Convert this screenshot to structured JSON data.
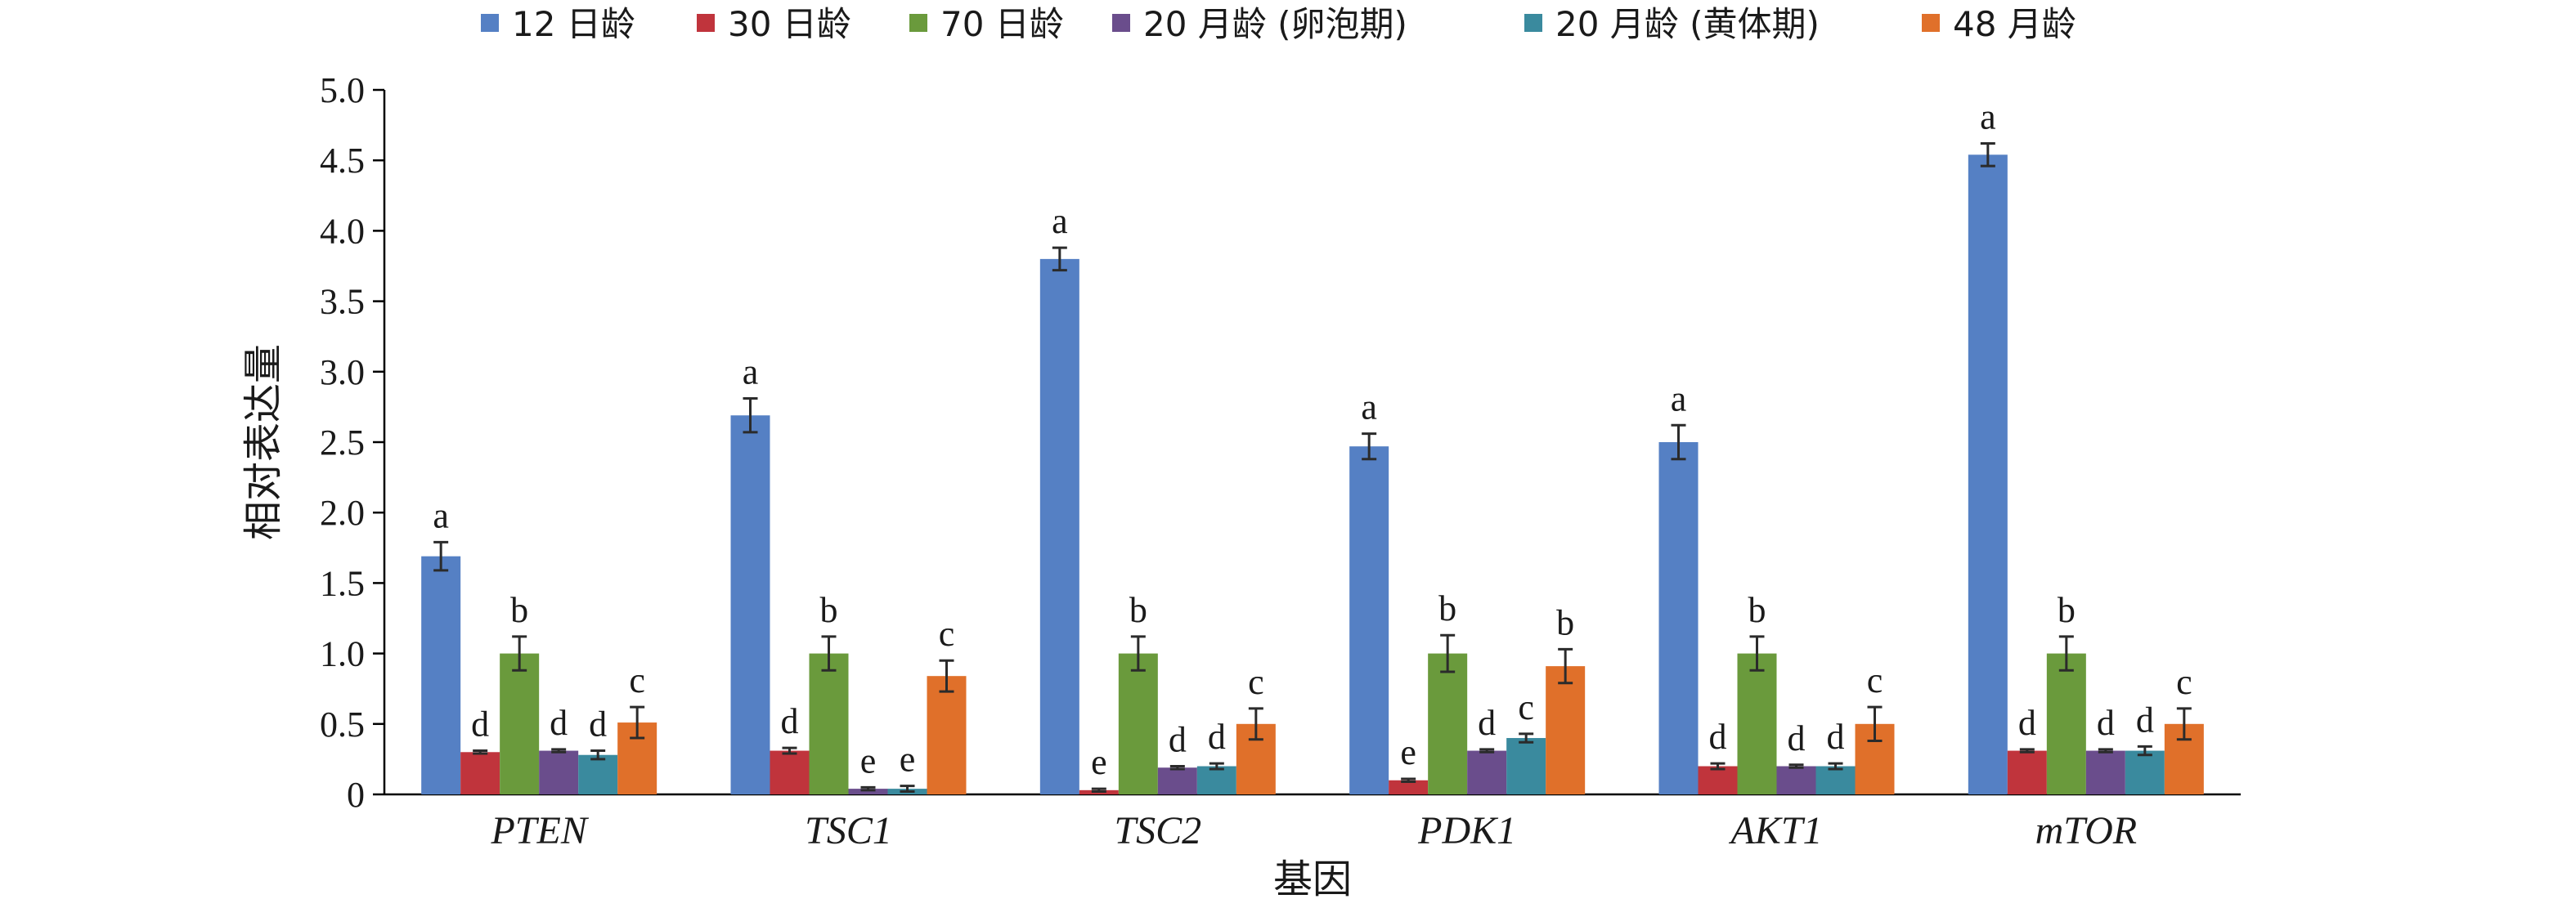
{
  "chart_data": {
    "type": "bar",
    "xlabel": "基因",
    "ylabel": "相对表达量",
    "ylim": [
      0,
      5.0
    ],
    "yticks": [
      "0",
      "0.5",
      "1.0",
      "1.5",
      "2.0",
      "2.5",
      "3.0",
      "3.5",
      "4.0",
      "4.5",
      "5.0"
    ],
    "legend_position": "top",
    "grid": false,
    "categories": [
      "PTEN",
      "TSC1",
      "TSC2",
      "PDK1",
      "AKT1",
      "mTOR"
    ],
    "series": [
      {
        "name": "12 日龄",
        "color": "#5580C4",
        "values": [
          1.69,
          2.69,
          3.8,
          2.47,
          2.5,
          4.54
        ],
        "errors": [
          0.1,
          0.12,
          0.08,
          0.09,
          0.12,
          0.08
        ],
        "letters": [
          "a",
          "a",
          "a",
          "a",
          "a",
          "a"
        ]
      },
      {
        "name": "30 日龄",
        "color": "#C0343C",
        "values": [
          0.3,
          0.31,
          0.03,
          0.1,
          0.2,
          0.31
        ],
        "errors": [
          0.01,
          0.02,
          0.01,
          0.01,
          0.02,
          0.01
        ],
        "letters": [
          "d",
          "d",
          "e",
          "e",
          "d",
          "d"
        ]
      },
      {
        "name": "70 日龄",
        "color": "#6A9A3C",
        "values": [
          1.0,
          1.0,
          1.0,
          1.0,
          1.0,
          1.0
        ],
        "errors": [
          0.12,
          0.12,
          0.12,
          0.13,
          0.12,
          0.12
        ],
        "letters": [
          "b",
          "b",
          "b",
          "b",
          "b",
          "b"
        ]
      },
      {
        "name": "20 月龄 (卵泡期)",
        "color": "#6A4D8C",
        "values": [
          0.31,
          0.04,
          0.19,
          0.31,
          0.2,
          0.31
        ],
        "errors": [
          0.01,
          0.01,
          0.01,
          0.01,
          0.01,
          0.01
        ],
        "letters": [
          "d",
          "e",
          "d",
          "d",
          "d",
          "d"
        ]
      },
      {
        "name": "20 月龄 (黄体期)",
        "color": "#3A8A9E",
        "values": [
          0.28,
          0.04,
          0.2,
          0.4,
          0.2,
          0.31
        ],
        "errors": [
          0.03,
          0.02,
          0.02,
          0.03,
          0.02,
          0.03
        ],
        "letters": [
          "d",
          "e",
          "d",
          "c",
          "d",
          "d"
        ]
      },
      {
        "name": "48 月龄",
        "color": "#E0702A",
        "values": [
          0.51,
          0.84,
          0.5,
          0.91,
          0.5,
          0.5
        ],
        "errors": [
          0.11,
          0.11,
          0.11,
          0.12,
          0.12,
          0.11
        ],
        "letters": [
          "c",
          "c",
          "c",
          "b",
          "c",
          "c"
        ]
      }
    ]
  }
}
